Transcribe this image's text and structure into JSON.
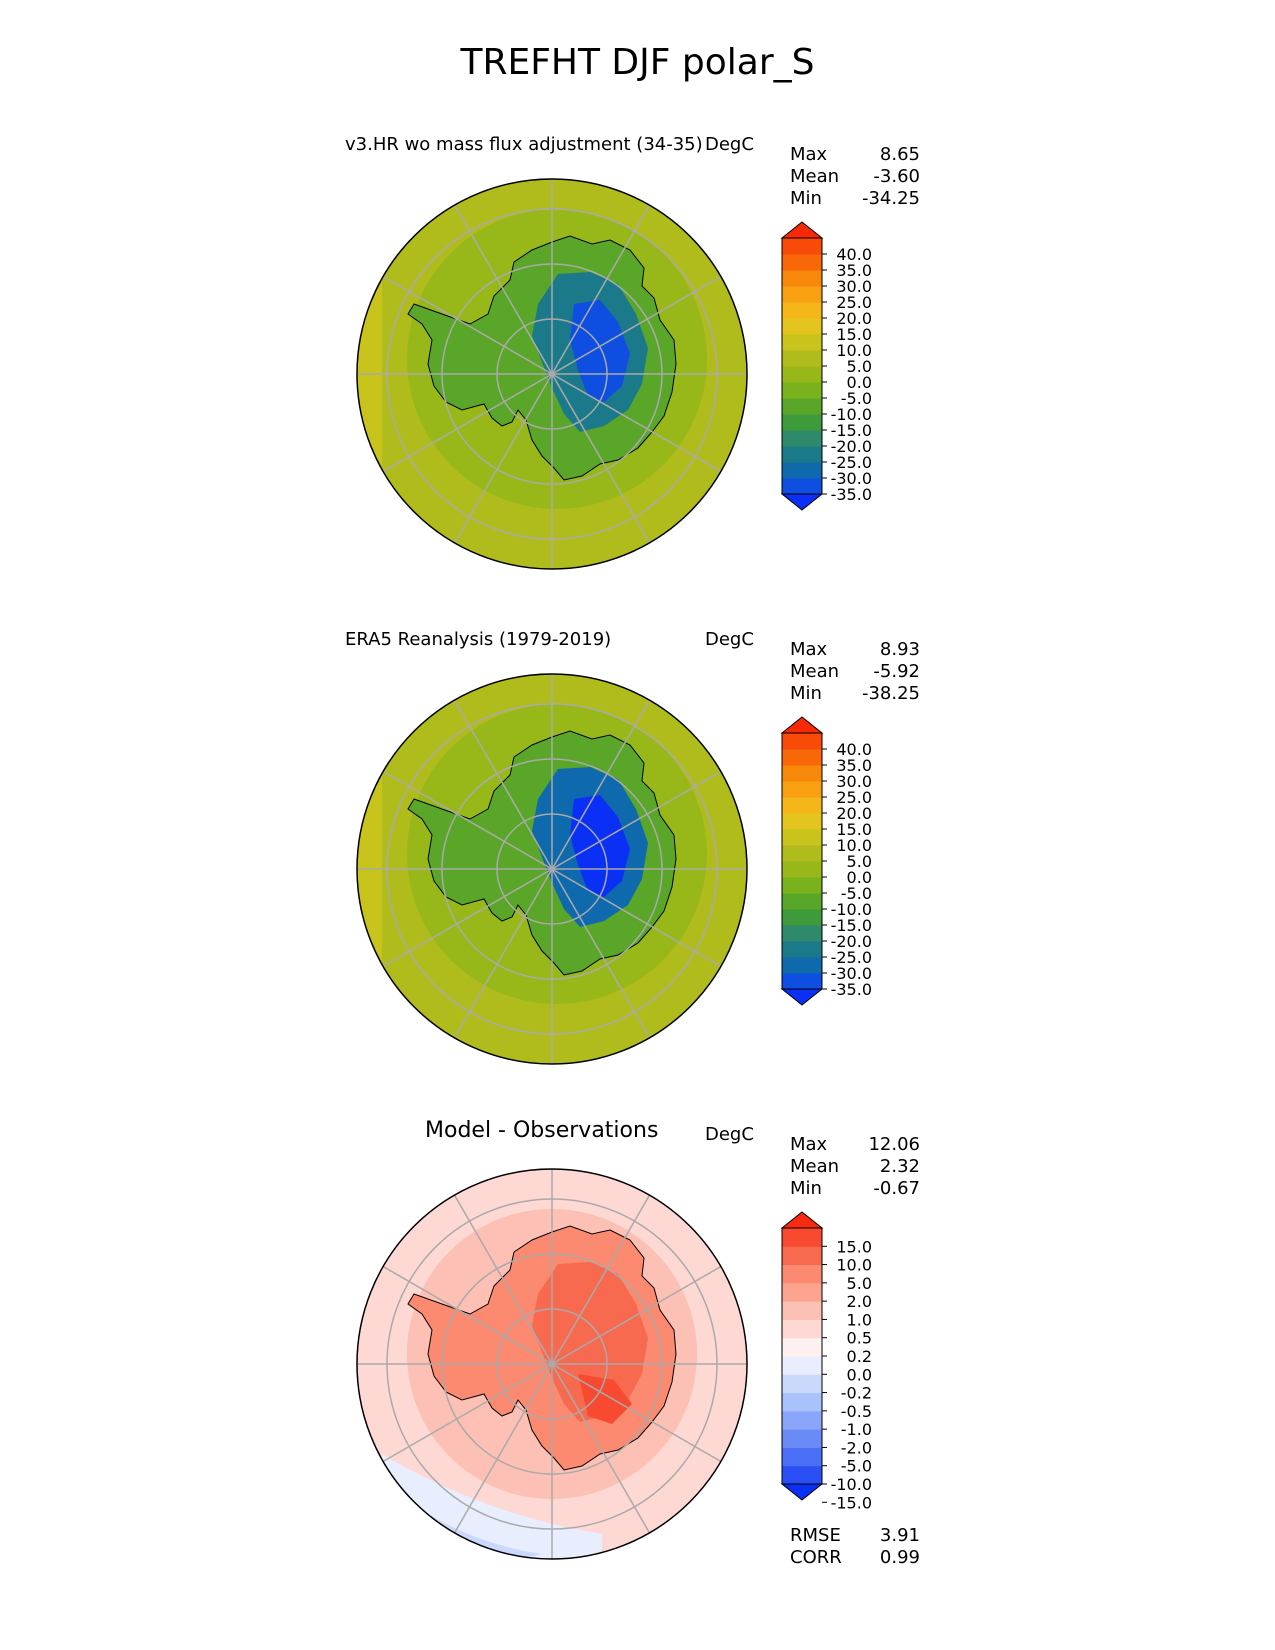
{
  "figure_title": "TREFHT DJF polar_S",
  "chart_data": [
    {
      "type": "heatmap",
      "title": "v3.HR wo mass flux adjustment (34-35)",
      "units": "DegC",
      "projection": "south polar stereographic",
      "stats": [
        {
          "label": "Max",
          "value": "8.65"
        },
        {
          "label": "Mean",
          "value": "-3.60"
        },
        {
          "label": "Min",
          "value": "-34.25"
        }
      ],
      "colorbar": {
        "extend": "both",
        "levels": [
          -35.0,
          -30.0,
          -25.0,
          -20.0,
          -15.0,
          -10.0,
          -5.0,
          0.0,
          5.0,
          10.0,
          15.0,
          20.0,
          25.0,
          30.0,
          35.0,
          40.0
        ],
        "tick_labels": [
          "40.0",
          "35.0",
          "30.0",
          "25.0",
          "20.0",
          "15.0",
          "10.0",
          "5.0",
          "0.0",
          "-5.0",
          "-10.0",
          "-15.0",
          "-20.0",
          "-25.0",
          "-30.0",
          "-35.0"
        ],
        "colors_bottom_to_top": [
          "#0a30f5",
          "#0e4ee0",
          "#0e6aad",
          "#1b7a8a",
          "#2e8a6a",
          "#3e9a3a",
          "#5aa628",
          "#7ab21e",
          "#98b81a",
          "#b0bc1c",
          "#c8c41c",
          "#e4c41e",
          "#f4b618",
          "#f8a010",
          "#f8880a",
          "#f86808",
          "#f84a08",
          "#f82a06"
        ]
      }
    },
    {
      "type": "heatmap",
      "title": "ERA5 Reanalysis (1979-2019)",
      "units": "DegC",
      "projection": "south polar stereographic",
      "stats": [
        {
          "label": "Max",
          "value": "8.93"
        },
        {
          "label": "Mean",
          "value": "-5.92"
        },
        {
          "label": "Min",
          "value": "-38.25"
        }
      ],
      "colorbar": {
        "extend": "both",
        "levels": [
          -35.0,
          -30.0,
          -25.0,
          -20.0,
          -15.0,
          -10.0,
          -5.0,
          0.0,
          5.0,
          10.0,
          15.0,
          20.0,
          25.0,
          30.0,
          35.0,
          40.0
        ],
        "tick_labels": [
          "40.0",
          "35.0",
          "30.0",
          "25.0",
          "20.0",
          "15.0",
          "10.0",
          "5.0",
          "0.0",
          "-5.0",
          "-10.0",
          "-15.0",
          "-20.0",
          "-25.0",
          "-30.0",
          "-35.0"
        ],
        "colors_bottom_to_top": [
          "#0a30f5",
          "#0e4ee0",
          "#0e6aad",
          "#1b7a8a",
          "#2e8a6a",
          "#3e9a3a",
          "#5aa628",
          "#7ab21e",
          "#98b81a",
          "#b0bc1c",
          "#c8c41c",
          "#e4c41e",
          "#f4b618",
          "#f8a010",
          "#f8880a",
          "#f86808",
          "#f84a08",
          "#f82a06"
        ]
      }
    },
    {
      "type": "heatmap",
      "title": "Model - Observations",
      "units": "DegC",
      "projection": "south polar stereographic",
      "stats": [
        {
          "label": "Max",
          "value": "12.06"
        },
        {
          "label": "Mean",
          "value": "2.32"
        },
        {
          "label": "Min",
          "value": "-0.67"
        }
      ],
      "metrics": [
        {
          "label": "RMSE",
          "value": "3.91"
        },
        {
          "label": "CORR",
          "value": "0.99"
        }
      ],
      "colorbar": {
        "extend": "both",
        "levels": [
          -15.0,
          -10.0,
          -5.0,
          -2.0,
          -1.0,
          -0.5,
          -0.2,
          0.0,
          0.2,
          0.5,
          1.0,
          2.0,
          5.0,
          10.0,
          15.0
        ],
        "tick_labels": [
          "15.0",
          "10.0",
          "5.0",
          "2.0",
          "1.0",
          "0.5",
          "0.2",
          "0.0",
          "-0.2",
          "-0.5",
          "-1.0",
          "-2.0",
          "-5.0",
          "-10.0",
          "-15.0"
        ],
        "colors_bottom_to_top": [
          "#0a30f5",
          "#2a50f5",
          "#4a6ef6",
          "#6a8af8",
          "#8aa6fa",
          "#aac2fb",
          "#cad8fc",
          "#e8eefe",
          "#fef0ee",
          "#fed8d2",
          "#fcc0b4",
          "#fca490",
          "#fc8a70",
          "#f86a50",
          "#f84a30",
          "#f82a10"
        ]
      }
    }
  ]
}
